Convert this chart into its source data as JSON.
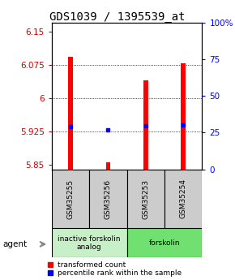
{
  "title": "GDS1039 / 1395539_at",
  "samples": [
    "GSM35255",
    "GSM35256",
    "GSM35253",
    "GSM35254"
  ],
  "red_values": [
    6.092,
    5.856,
    6.04,
    6.079
  ],
  "blue_values": [
    5.936,
    5.929,
    5.937,
    5.94
  ],
  "ylim_left": [
    5.84,
    6.17
  ],
  "ylim_right": [
    0,
    100
  ],
  "yticks_left": [
    5.85,
    5.925,
    6.0,
    6.075,
    6.15
  ],
  "ytick_labels_left": [
    "5.85",
    "5.925",
    "6",
    "6.075",
    "6.15"
  ],
  "yticks_right": [
    0,
    25,
    50,
    75,
    100
  ],
  "ytick_labels_right": [
    "0",
    "25",
    "50",
    "75",
    "100%"
  ],
  "hlines": [
    5.925,
    6.0,
    6.075
  ],
  "groups": [
    {
      "label": "inactive forskolin\nanalog",
      "start": 0,
      "end": 2,
      "color": "#c8f0c8"
    },
    {
      "label": "forskolin",
      "start": 2,
      "end": 4,
      "color": "#70e070"
    }
  ],
  "agent_label": "agent",
  "legend_red": "transformed count",
  "legend_blue": "percentile rank within the sample",
  "bar_width": 0.12,
  "title_fontsize": 10,
  "tick_fontsize": 7.5,
  "label_fontsize": 7
}
